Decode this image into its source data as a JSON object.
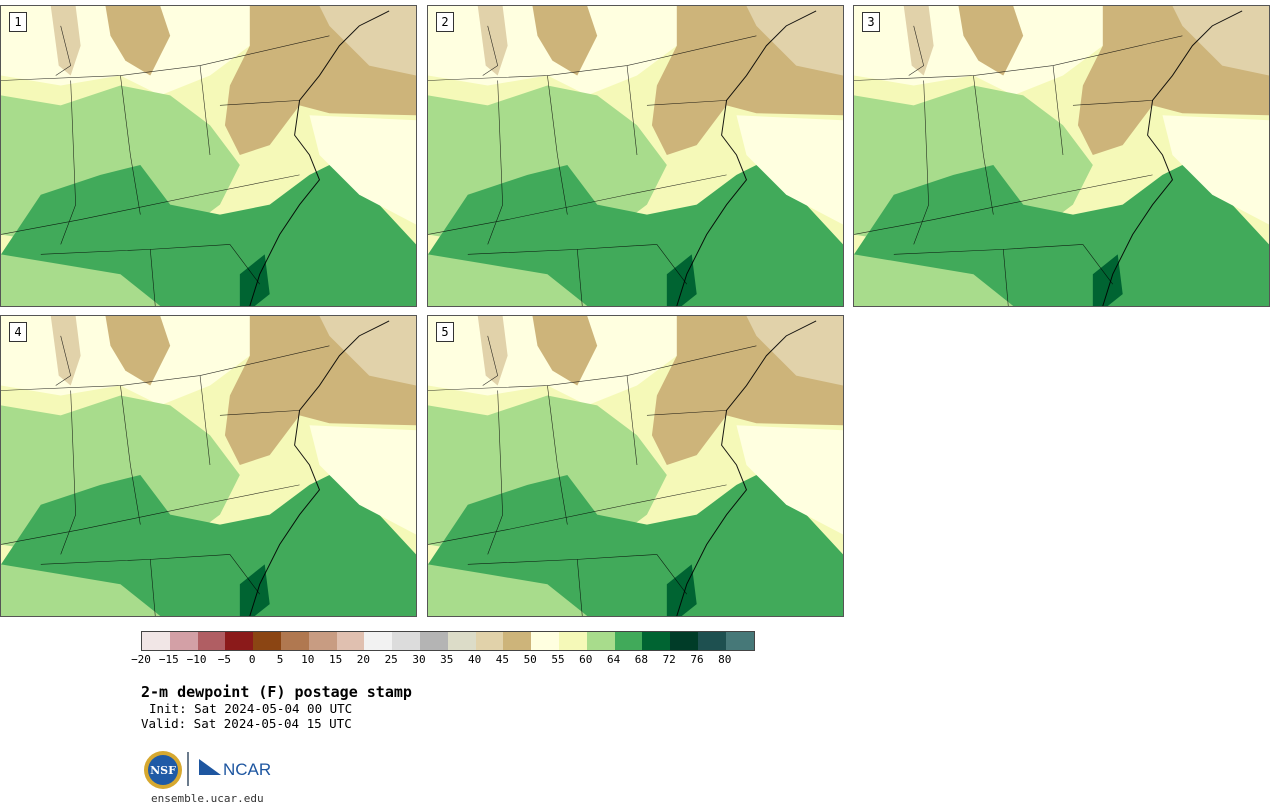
{
  "panels": [
    {
      "label": "1"
    },
    {
      "label": "2"
    },
    {
      "label": "3"
    },
    {
      "label": "4"
    },
    {
      "label": "5"
    }
  ],
  "colorbar": {
    "colors": [
      "#f1e6e6",
      "#d3a0a6",
      "#b05e63",
      "#8b1a1a",
      "#8b4513",
      "#b07850",
      "#c89c82",
      "#e0c0b0",
      "#f2f2f2",
      "#dcdcdc",
      "#b4b4b4",
      "#dcdcc8",
      "#e1d2aa",
      "#cdb47a",
      "#ffffe0",
      "#f5f9b8",
      "#a8dc8c",
      "#41aa5a",
      "#006432",
      "#003c28",
      "#1e5050",
      "#467878"
    ],
    "ticks": [
      "−20",
      "−15",
      "−10",
      "−5",
      "0",
      "5",
      "10",
      "15",
      "20",
      "25",
      "30",
      "35",
      "40",
      "45",
      "50",
      "55",
      "60",
      "64",
      "68",
      "72",
      "76",
      "80"
    ]
  },
  "title": "2-m dewpoint (F) postage stamp",
  "init": "Init: Sat 2024-05-04 00 UTC",
  "valid": "Valid: Sat 2024-05-04 15 UTC",
  "logos": {
    "nsf": "NSF",
    "ncar": "NCAR",
    "nsf_icon": "nsf-globe-icon",
    "ncar_icon": "ncar-mark-icon"
  },
  "site_url": "ensemble.ucar.edu"
}
